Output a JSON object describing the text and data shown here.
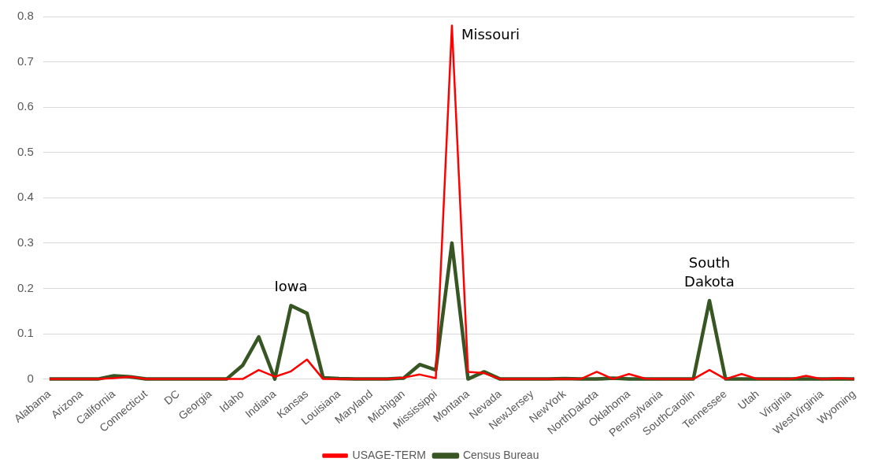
{
  "chart_data": {
    "type": "line",
    "categories": [
      "Alabama",
      null,
      "Arizona",
      null,
      "California",
      null,
      "Connecticut",
      null,
      "DC",
      null,
      "Georgia",
      null,
      "Idaho",
      null,
      "Indiana",
      null,
      "Kansas",
      null,
      "Louisiana",
      null,
      "Maryland",
      null,
      "Michigan",
      null,
      "Mississippi",
      null,
      "Montana",
      null,
      "Nevada",
      null,
      "NewJersey",
      null,
      "NewYork",
      null,
      "NorthDakota",
      null,
      "Oklahoma",
      null,
      "Pennsylvania",
      null,
      "SouthCarolin",
      null,
      "Tennessee",
      null,
      "Utah",
      null,
      "Virginia",
      null,
      "WestVirginia",
      null,
      "Wyoming"
    ],
    "series": [
      {
        "name": "USAGE-TERM",
        "color": "#ff0000",
        "values": [
          0,
          0,
          0,
          0,
          0.002,
          0.005,
          0,
          0,
          0,
          0,
          0,
          0,
          0,
          0.02,
          0.005,
          0.017,
          0.043,
          0,
          0,
          0,
          0,
          0,
          0.003,
          0.01,
          0.002,
          0.78,
          0.016,
          0.013,
          0,
          0,
          0,
          0,
          0,
          0,
          0.016,
          0,
          0.011,
          0.001,
          0,
          0,
          0,
          0.02,
          0,
          0.011,
          0,
          0,
          0,
          0.007,
          0,
          0.002,
          0
        ]
      },
      {
        "name": "Census Bureau",
        "color": "#375623",
        "values": [
          0,
          0,
          0,
          0,
          0.007,
          0.005,
          0,
          0,
          0,
          0,
          0,
          0,
          0.03,
          0.093,
          0,
          0.162,
          0.145,
          0.003,
          0.001,
          0,
          0,
          0,
          0.002,
          0.032,
          0.02,
          0.3,
          0,
          0.016,
          0,
          0,
          0,
          0,
          0.001,
          0,
          0,
          0.002,
          0,
          0,
          0,
          0,
          0,
          0.173,
          0,
          0,
          0,
          0,
          0,
          0,
          0,
          0,
          0
        ]
      }
    ],
    "ylim": [
      0,
      0.8
    ],
    "yticks": [
      0,
      0.1,
      0.2,
      0.3,
      0.4,
      0.5,
      0.6,
      0.7,
      0.8
    ],
    "grid": "y",
    "legend": "bottom",
    "marker": "none",
    "line_style": "solid",
    "annotations": [
      "Iowa",
      "Missouri",
      "South Dakota"
    ]
  }
}
